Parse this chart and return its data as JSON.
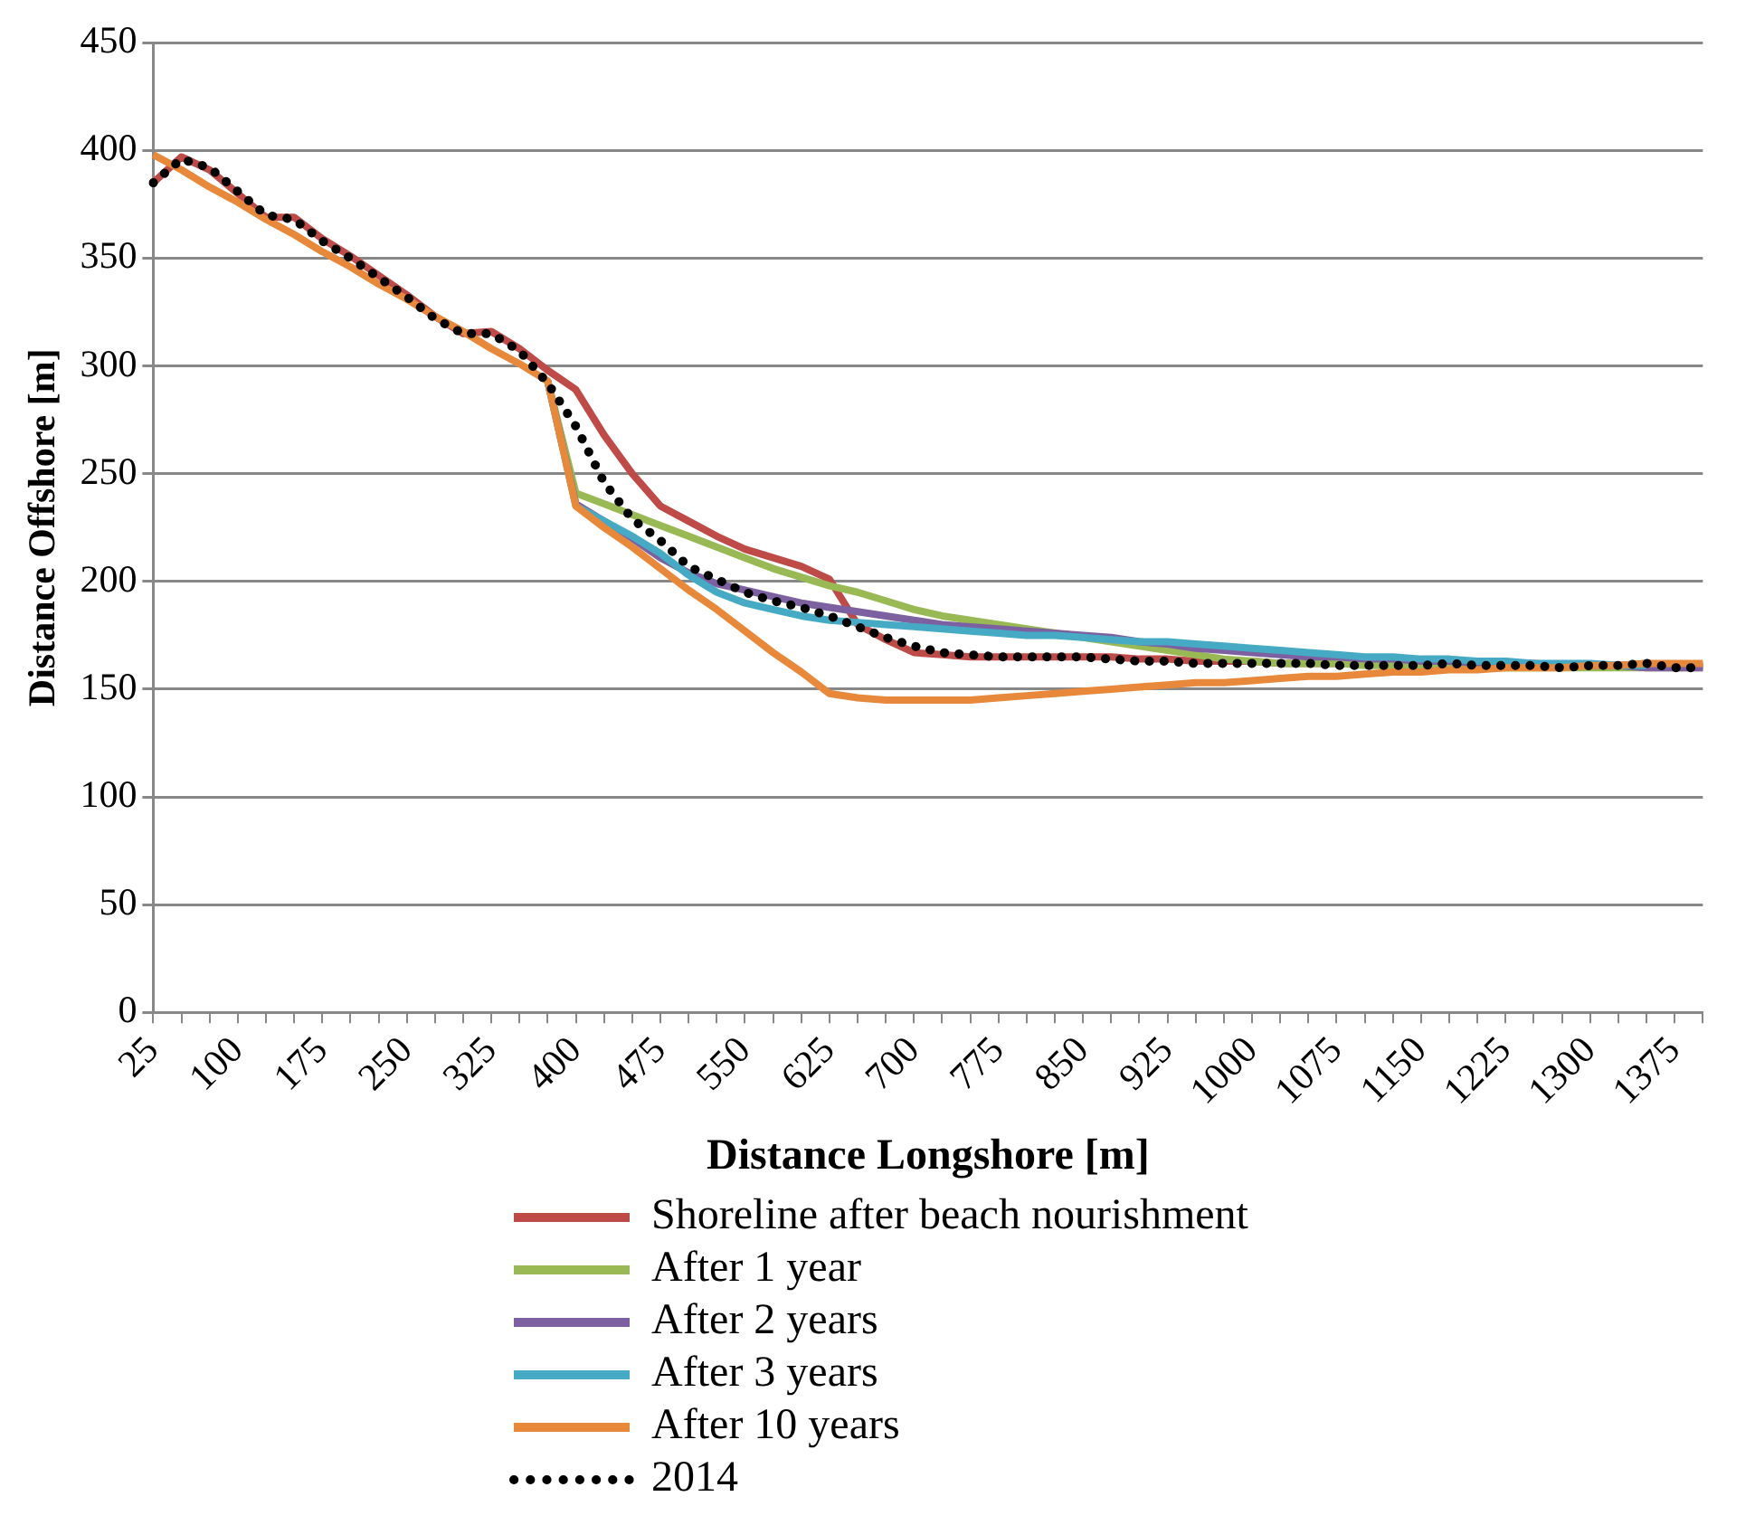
{
  "chart_data": {
    "type": "line",
    "xlabel": "Distance Longshore [m]",
    "ylabel": "Distance Offshore [m]",
    "categories": [
      "25",
      null,
      null,
      "100",
      null,
      null,
      "175",
      null,
      null,
      "250",
      null,
      null,
      "325",
      null,
      null,
      "400",
      null,
      null,
      "475",
      null,
      null,
      "550",
      null,
      null,
      "625",
      null,
      null,
      "700",
      null,
      null,
      "775",
      null,
      null,
      "850",
      null,
      null,
      "925",
      null,
      null,
      "1000",
      null,
      null,
      "1075",
      null,
      null,
      "1150",
      null,
      null,
      "1225",
      null,
      null,
      "1300",
      null,
      null,
      "1375",
      null
    ],
    "ylim": [
      0,
      450
    ],
    "yticks": [
      0,
      50,
      100,
      150,
      200,
      250,
      300,
      350,
      400,
      450
    ],
    "grid": "y",
    "legend": "bottom",
    "marker": "none",
    "series": [
      {
        "name": "Shoreline after beach nourishment",
        "color": "#be4b48",
        "line_style": "solid",
        "values": [
          385,
          397,
          391,
          380,
          369,
          369,
          359,
          351,
          342,
          333,
          323,
          315,
          316,
          308,
          298,
          289,
          268,
          250,
          235,
          228,
          221,
          215,
          211,
          207,
          201,
          180,
          173,
          167,
          166,
          165,
          165,
          165,
          165,
          165,
          165,
          164,
          164,
          163,
          163,
          163,
          162,
          162,
          162,
          162,
          161,
          161,
          161,
          161,
          161,
          161,
          161,
          161,
          161,
          162,
          161,
          161
        ]
      },
      {
        "name": "After 1 year",
        "color": "#98b954",
        "line_style": "solid",
        "values": [
          null,
          null,
          null,
          null,
          null,
          null,
          null,
          null,
          null,
          null,
          null,
          null,
          null,
          null,
          293,
          241,
          236,
          231,
          226,
          221,
          216,
          211,
          206,
          202,
          198,
          195,
          191,
          187,
          184,
          182,
          180,
          178,
          176,
          174,
          172,
          170,
          168,
          166,
          164,
          163,
          162,
          162,
          162,
          161,
          161,
          161,
          161,
          160,
          160,
          160,
          160,
          160,
          160,
          160,
          160,
          160
        ]
      },
      {
        "name": "After 2 years",
        "color": "#7d60a0",
        "line_style": "solid",
        "values": [
          null,
          null,
          null,
          null,
          null,
          null,
          null,
          null,
          null,
          null,
          null,
          null,
          null,
          null,
          293,
          236,
          228,
          220,
          211,
          204,
          199,
          196,
          193,
          190,
          188,
          186,
          184,
          182,
          180,
          179,
          178,
          177,
          176,
          175,
          174,
          172,
          171,
          169,
          168,
          167,
          166,
          165,
          165,
          164,
          164,
          163,
          163,
          162,
          162,
          162,
          161,
          161,
          161,
          160,
          160,
          160
        ]
      },
      {
        "name": "After 3 years",
        "color": "#46aac5",
        "line_style": "solid",
        "values": [
          null,
          null,
          null,
          null,
          null,
          null,
          null,
          null,
          null,
          null,
          null,
          null,
          null,
          null,
          293,
          235,
          228,
          221,
          213,
          203,
          195,
          190,
          187,
          184,
          182,
          181,
          180,
          179,
          178,
          177,
          176,
          175,
          175,
          174,
          173,
          172,
          172,
          171,
          170,
          169,
          168,
          167,
          166,
          165,
          165,
          164,
          164,
          163,
          163,
          162,
          162,
          162,
          161,
          161,
          null,
          null
        ]
      },
      {
        "name": "After 10 years",
        "color": "#e8883a",
        "line_style": "solid",
        "values": [
          398,
          391,
          383,
          376,
          368,
          361,
          353,
          346,
          338,
          331,
          323,
          316,
          308,
          301,
          293,
          235,
          225,
          216,
          206,
          196,
          187,
          177,
          167,
          158,
          148,
          146,
          145,
          145,
          145,
          145,
          146,
          147,
          148,
          149,
          150,
          151,
          152,
          153,
          153,
          154,
          155,
          156,
          156,
          157,
          158,
          158,
          159,
          159,
          160,
          160,
          160,
          161,
          161,
          162,
          162,
          162
        ]
      },
      {
        "name": "2014",
        "color": "#000000",
        "line_style": "dotted",
        "values": [
          385,
          396,
          392,
          381,
          370,
          368,
          358,
          350,
          341,
          332,
          322,
          315,
          315,
          307,
          292,
          272,
          246,
          229,
          219,
          207,
          201,
          195,
          191,
          188,
          184,
          179,
          174,
          170,
          167,
          166,
          165,
          165,
          165,
          165,
          164,
          163,
          163,
          162,
          162,
          162,
          162,
          162,
          161,
          161,
          161,
          161,
          162,
          161,
          161,
          161,
          160,
          161,
          161,
          162,
          160,
          160
        ]
      }
    ]
  }
}
